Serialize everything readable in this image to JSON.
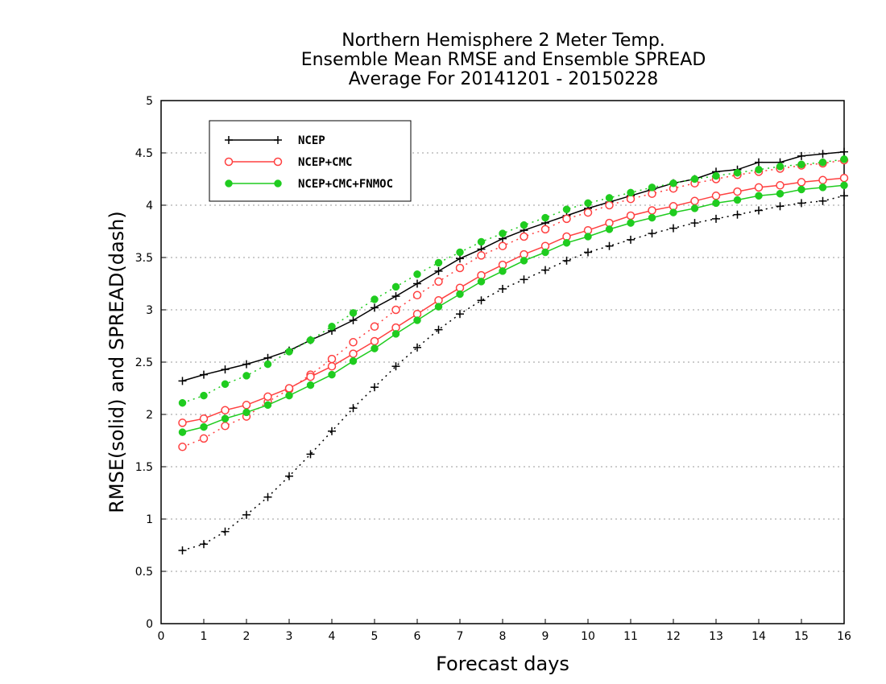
{
  "chart_data": {
    "type": "line",
    "title": [
      "Northern Hemisphere 2 Meter Temp.",
      "Ensemble Mean RMSE and Ensemble SPREAD",
      "Average For 20141201 - 20150228"
    ],
    "xlabel": "Forecast days",
    "ylabel": "RMSE(solid) and SPREAD(dash)",
    "xlim": [
      0,
      16
    ],
    "ylim": [
      0,
      5
    ],
    "xticks": [
      0,
      1,
      2,
      3,
      4,
      5,
      6,
      7,
      8,
      9,
      10,
      11,
      12,
      13,
      14,
      15,
      16
    ],
    "yticks": [
      0,
      0.5,
      1,
      1.5,
      2,
      2.5,
      3,
      3.5,
      4,
      4.5,
      5
    ],
    "ytick_labels": [
      "0",
      "0.5",
      "1",
      "1.5",
      "2",
      "2.5",
      "3",
      "3.5",
      "4",
      "4.5",
      "5"
    ],
    "grid": "horizontal dotted",
    "legend_position": "top-left",
    "x": [
      0.5,
      1,
      1.5,
      2,
      2.5,
      3,
      3.5,
      4,
      4.5,
      5,
      5.5,
      6,
      6.5,
      7,
      7.5,
      8,
      8.5,
      9,
      9.5,
      10,
      10.5,
      11,
      11.5,
      12,
      12.5,
      13,
      13.5,
      14,
      14.5,
      15,
      15.5,
      16
    ],
    "series": [
      {
        "name": "NCEP",
        "color": "#000000",
        "marker": "plus",
        "rmse": [
          2.32,
          2.38,
          2.43,
          2.48,
          2.54,
          2.61,
          2.71,
          2.8,
          2.9,
          3.02,
          3.13,
          3.25,
          3.37,
          3.49,
          3.58,
          3.68,
          3.76,
          3.83,
          3.9,
          3.97,
          4.03,
          4.09,
          4.15,
          4.21,
          4.25,
          4.32,
          4.34,
          4.41,
          4.41,
          4.47,
          4.49,
          4.51
        ],
        "spread": [
          0.7,
          0.76,
          0.88,
          1.04,
          1.21,
          1.41,
          1.62,
          1.84,
          2.06,
          2.26,
          2.46,
          2.64,
          2.81,
          2.96,
          3.09,
          3.2,
          3.29,
          3.38,
          3.47,
          3.55,
          3.61,
          3.67,
          3.73,
          3.78,
          3.83,
          3.87,
          3.91,
          3.95,
          3.99,
          4.02,
          4.04,
          4.09
        ]
      },
      {
        "name": "NCEP+CMC",
        "color": "#ff4040",
        "marker": "circle",
        "rmse": [
          1.92,
          1.96,
          2.04,
          2.09,
          2.17,
          2.25,
          2.36,
          2.46,
          2.58,
          2.7,
          2.83,
          2.96,
          3.09,
          3.21,
          3.33,
          3.43,
          3.53,
          3.61,
          3.7,
          3.76,
          3.83,
          3.9,
          3.95,
          3.99,
          4.04,
          4.09,
          4.13,
          4.17,
          4.19,
          4.22,
          4.24,
          4.26
        ],
        "spread": [
          1.69,
          1.77,
          1.89,
          1.98,
          2.12,
          2.24,
          2.38,
          2.53,
          2.69,
          2.84,
          3.0,
          3.14,
          3.27,
          3.4,
          3.52,
          3.61,
          3.7,
          3.77,
          3.87,
          3.93,
          4.0,
          4.06,
          4.11,
          4.16,
          4.21,
          4.25,
          4.29,
          4.32,
          4.35,
          4.38,
          4.4,
          4.43
        ]
      },
      {
        "name": "NCEP+CMC+FNMOC",
        "color": "#1fcc1f",
        "marker": "dot",
        "rmse": [
          1.83,
          1.88,
          1.96,
          2.02,
          2.09,
          2.18,
          2.28,
          2.38,
          2.51,
          2.63,
          2.77,
          2.9,
          3.03,
          3.15,
          3.27,
          3.37,
          3.47,
          3.55,
          3.64,
          3.7,
          3.77,
          3.83,
          3.88,
          3.93,
          3.97,
          4.02,
          4.05,
          4.09,
          4.11,
          4.15,
          4.17,
          4.19
        ],
        "spread": [
          2.11,
          2.18,
          2.29,
          2.37,
          2.48,
          2.6,
          2.71,
          2.84,
          2.97,
          3.1,
          3.22,
          3.34,
          3.45,
          3.55,
          3.65,
          3.73,
          3.81,
          3.88,
          3.96,
          4.02,
          4.07,
          4.12,
          4.17,
          4.21,
          4.25,
          4.28,
          4.31,
          4.34,
          4.37,
          4.39,
          4.41,
          4.44
        ]
      }
    ]
  }
}
